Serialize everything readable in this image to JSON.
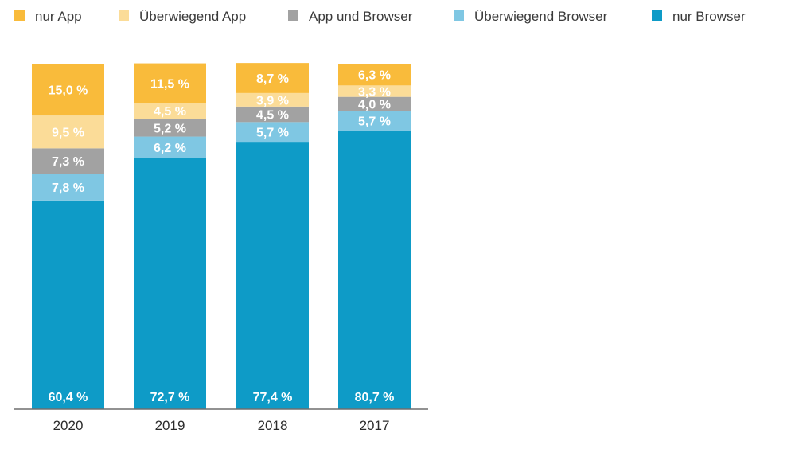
{
  "chart_data": {
    "type": "bar",
    "stacked": true,
    "categories": [
      "2020",
      "2019",
      "2018",
      "2017"
    ],
    "ylim": [
      0,
      100
    ],
    "grid": false,
    "legend_position": "top",
    "series": [
      {
        "name": "nur Browser",
        "color": "#0e9bc7",
        "values": [
          60.4,
          72.7,
          77.4,
          80.7
        ],
        "labels": [
          "60,4 %",
          "72,7 %",
          "77,4 %",
          "80,7 %"
        ]
      },
      {
        "name": "Überwiegend Browser",
        "color": "#7fc7e3",
        "values": [
          7.8,
          6.2,
          5.7,
          5.7
        ],
        "labels": [
          "7,8 %",
          "6,2 %",
          "5,7 %",
          "5,7 %"
        ]
      },
      {
        "name": "App und Browser",
        "color": "#a2a2a2",
        "values": [
          7.3,
          5.2,
          4.5,
          4.0
        ],
        "labels": [
          "7,3 %",
          "5,2 %",
          "4,5 %",
          "4,0 %"
        ]
      },
      {
        "name": "Überwiegend App",
        "color": "#fbdc98",
        "values": [
          9.5,
          4.5,
          3.9,
          3.3
        ],
        "labels": [
          "9,5 %",
          "4,5 %",
          "3,9 %",
          "3,3 %"
        ]
      },
      {
        "name": "nur App",
        "color": "#f9bb3b",
        "values": [
          15.0,
          11.5,
          8.7,
          6.3
        ],
        "labels": [
          "15,0 %",
          "11,5 %",
          "8,7 %",
          "6,3 %"
        ]
      }
    ],
    "legend_order": [
      "nur App",
      "Überwiegend App",
      "App und Browser",
      "Überwiegend Browser",
      "nur Browser"
    ]
  }
}
